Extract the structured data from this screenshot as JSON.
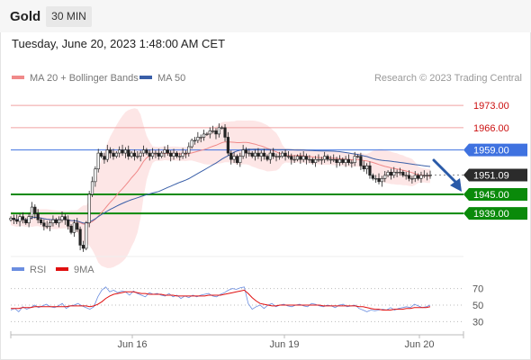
{
  "header": {
    "instrument": "Gold",
    "timeframe": "30 MIN"
  },
  "datetime": "Tuesday, June 20, 2023 1:48:00 AM CET",
  "legend": {
    "ma20_label": "MA 20 + Bollinger Bands",
    "ma50_label": "MA 50",
    "copyright": "Research © 2023 Trading Central",
    "rsi_label": "RSI",
    "ma9_label": "9MA"
  },
  "colors": {
    "ma20": "#f08a8a",
    "ma50": "#3a5fa8",
    "bollinger_fill": "#fde3e3",
    "resistance": "#f0a0a0",
    "pivot": "#3f72e0",
    "support": "#0a8a0a",
    "rsi": "#6b8ee0",
    "rsi_ma": "#e01010",
    "arrow": "#2a5aa8",
    "price_label": "#2b2b2b"
  },
  "chart_data": [
    {
      "type": "candlestick",
      "title": "Gold",
      "timeframe": "30 MIN",
      "x_ticks": [
        "Jun 16",
        "Jun 19",
        "Jun 20"
      ],
      "ylim": [
        1926,
        1979
      ],
      "levels": [
        {
          "role": "resistance",
          "value": "1973.00"
        },
        {
          "role": "resistance",
          "value": "1966.00"
        },
        {
          "role": "pivot",
          "value": "1959.00"
        },
        {
          "role": "last",
          "value": "1951.09"
        },
        {
          "role": "support",
          "value": "1945.00"
        },
        {
          "role": "support",
          "value": "1939.00"
        }
      ],
      "close_series": [
        1937.5,
        1937.0,
        1936.5,
        1938.0,
        1937.0,
        1936.0,
        1938.0,
        1941.0,
        1939.0,
        1937.0,
        1936.0,
        1935.0,
        1935.0,
        1936.0,
        1937.0,
        1936.0,
        1937.0,
        1938.0,
        1937.0,
        1935.0,
        1933.0,
        1936.0,
        1934.0,
        1929.0,
        1928.0,
        1936.0,
        1945.0,
        1949.0,
        1953.0,
        1958.0,
        1957.0,
        1956.0,
        1959.0,
        1958.0,
        1957.0,
        1958.0,
        1959.0,
        1958.0,
        1959.0,
        1957.0,
        1958.0,
        1957.0,
        1957.0,
        1958.0,
        1959.0,
        1958.0,
        1957.0,
        1958.0,
        1958.0,
        1957.0,
        1958.0,
        1959.0,
        1958.0,
        1957.0,
        1958.0,
        1957.0,
        1957.0,
        1958.0,
        1958.0,
        1960.0,
        1962.0,
        1962.0,
        1963.0,
        1963.0,
        1964.0,
        1964.0,
        1965.0,
        1965.0,
        1964.0,
        1966.0,
        1966.0,
        1963.0,
        1958.0,
        1956.0,
        1957.0,
        1955.0,
        1957.0,
        1959.0,
        1958.0,
        1958.0,
        1957.0,
        1958.0,
        1957.0,
        1958.0,
        1957.0,
        1956.0,
        1958.0,
        1957.0,
        1957.0,
        1957.0,
        1958.0,
        1957.0,
        1957.0,
        1956.0,
        1956.0,
        1957.0,
        1956.0,
        1957.0,
        1956.0,
        1956.0,
        1955.0,
        1956.0,
        1956.0,
        1956.0,
        1957.0,
        1956.0,
        1956.0,
        1956.0,
        1955.0,
        1956.0,
        1955.0,
        1956.0,
        1955.0,
        1955.0,
        1957.0,
        1957.0,
        1954.0,
        1953.0,
        1954.0,
        1951.0,
        1950.0,
        1950.0,
        1949.0,
        1950.0,
        1951.0,
        1952.0,
        1951.0,
        1952.0,
        1952.0,
        1952.0,
        1951.0,
        1951.0,
        1950.0,
        1950.0,
        1951.0,
        1950.0,
        1951.0,
        1951.0,
        1951.0,
        1951.1
      ]
    },
    {
      "type": "line",
      "title": "RSI",
      "ylim": [
        25,
        75
      ],
      "y_ticks": [
        "70",
        "50",
        "30"
      ],
      "series": [
        {
          "name": "RSI",
          "values": [
            44,
            46,
            42,
            48,
            45,
            47,
            50,
            47,
            49,
            51,
            48,
            47,
            49,
            52,
            46,
            49,
            50,
            52,
            49,
            47,
            45,
            48,
            60,
            68,
            72,
            66,
            68,
            65,
            67,
            66,
            62,
            67,
            64,
            62,
            60,
            65,
            63,
            64,
            62,
            61,
            64,
            60,
            62,
            58,
            61,
            59,
            62,
            60,
            62,
            63,
            64,
            61,
            60,
            63,
            65,
            68,
            70,
            69,
            71,
            72,
            52,
            45,
            48,
            50,
            46,
            50,
            52,
            48,
            50,
            51,
            49,
            48,
            50,
            51,
            49,
            48,
            52,
            51,
            49,
            48,
            50,
            49,
            47,
            50,
            51,
            48,
            49,
            50,
            46,
            44,
            42,
            44,
            43,
            44,
            45,
            44,
            47,
            44,
            46,
            47,
            48,
            47,
            51,
            49,
            47,
            48,
            50
          ]
        },
        {
          "name": "9MA",
          "values": [
            46,
            46,
            46,
            47,
            47,
            47,
            48,
            48,
            48,
            48,
            48,
            48,
            48,
            48,
            48,
            49,
            49,
            49,
            49,
            49,
            48,
            49,
            51,
            54,
            58,
            61,
            63,
            64,
            65,
            66,
            66,
            66,
            65,
            64,
            64,
            63,
            63,
            63,
            63,
            62,
            62,
            62,
            61,
            61,
            61,
            61,
            61,
            61,
            61,
            61,
            62,
            62,
            62,
            62,
            63,
            64,
            65,
            66,
            67,
            68,
            64,
            59,
            55,
            52,
            51,
            50,
            49,
            49,
            50,
            50,
            50,
            50,
            50,
            50,
            50,
            50,
            50,
            50,
            50,
            49,
            49,
            49,
            49,
            49,
            49,
            49,
            49,
            49,
            48,
            48,
            47,
            46,
            45,
            45,
            44,
            44,
            44,
            45,
            45,
            45,
            46,
            46,
            47,
            47,
            47,
            47,
            48
          ]
        }
      ]
    }
  ]
}
